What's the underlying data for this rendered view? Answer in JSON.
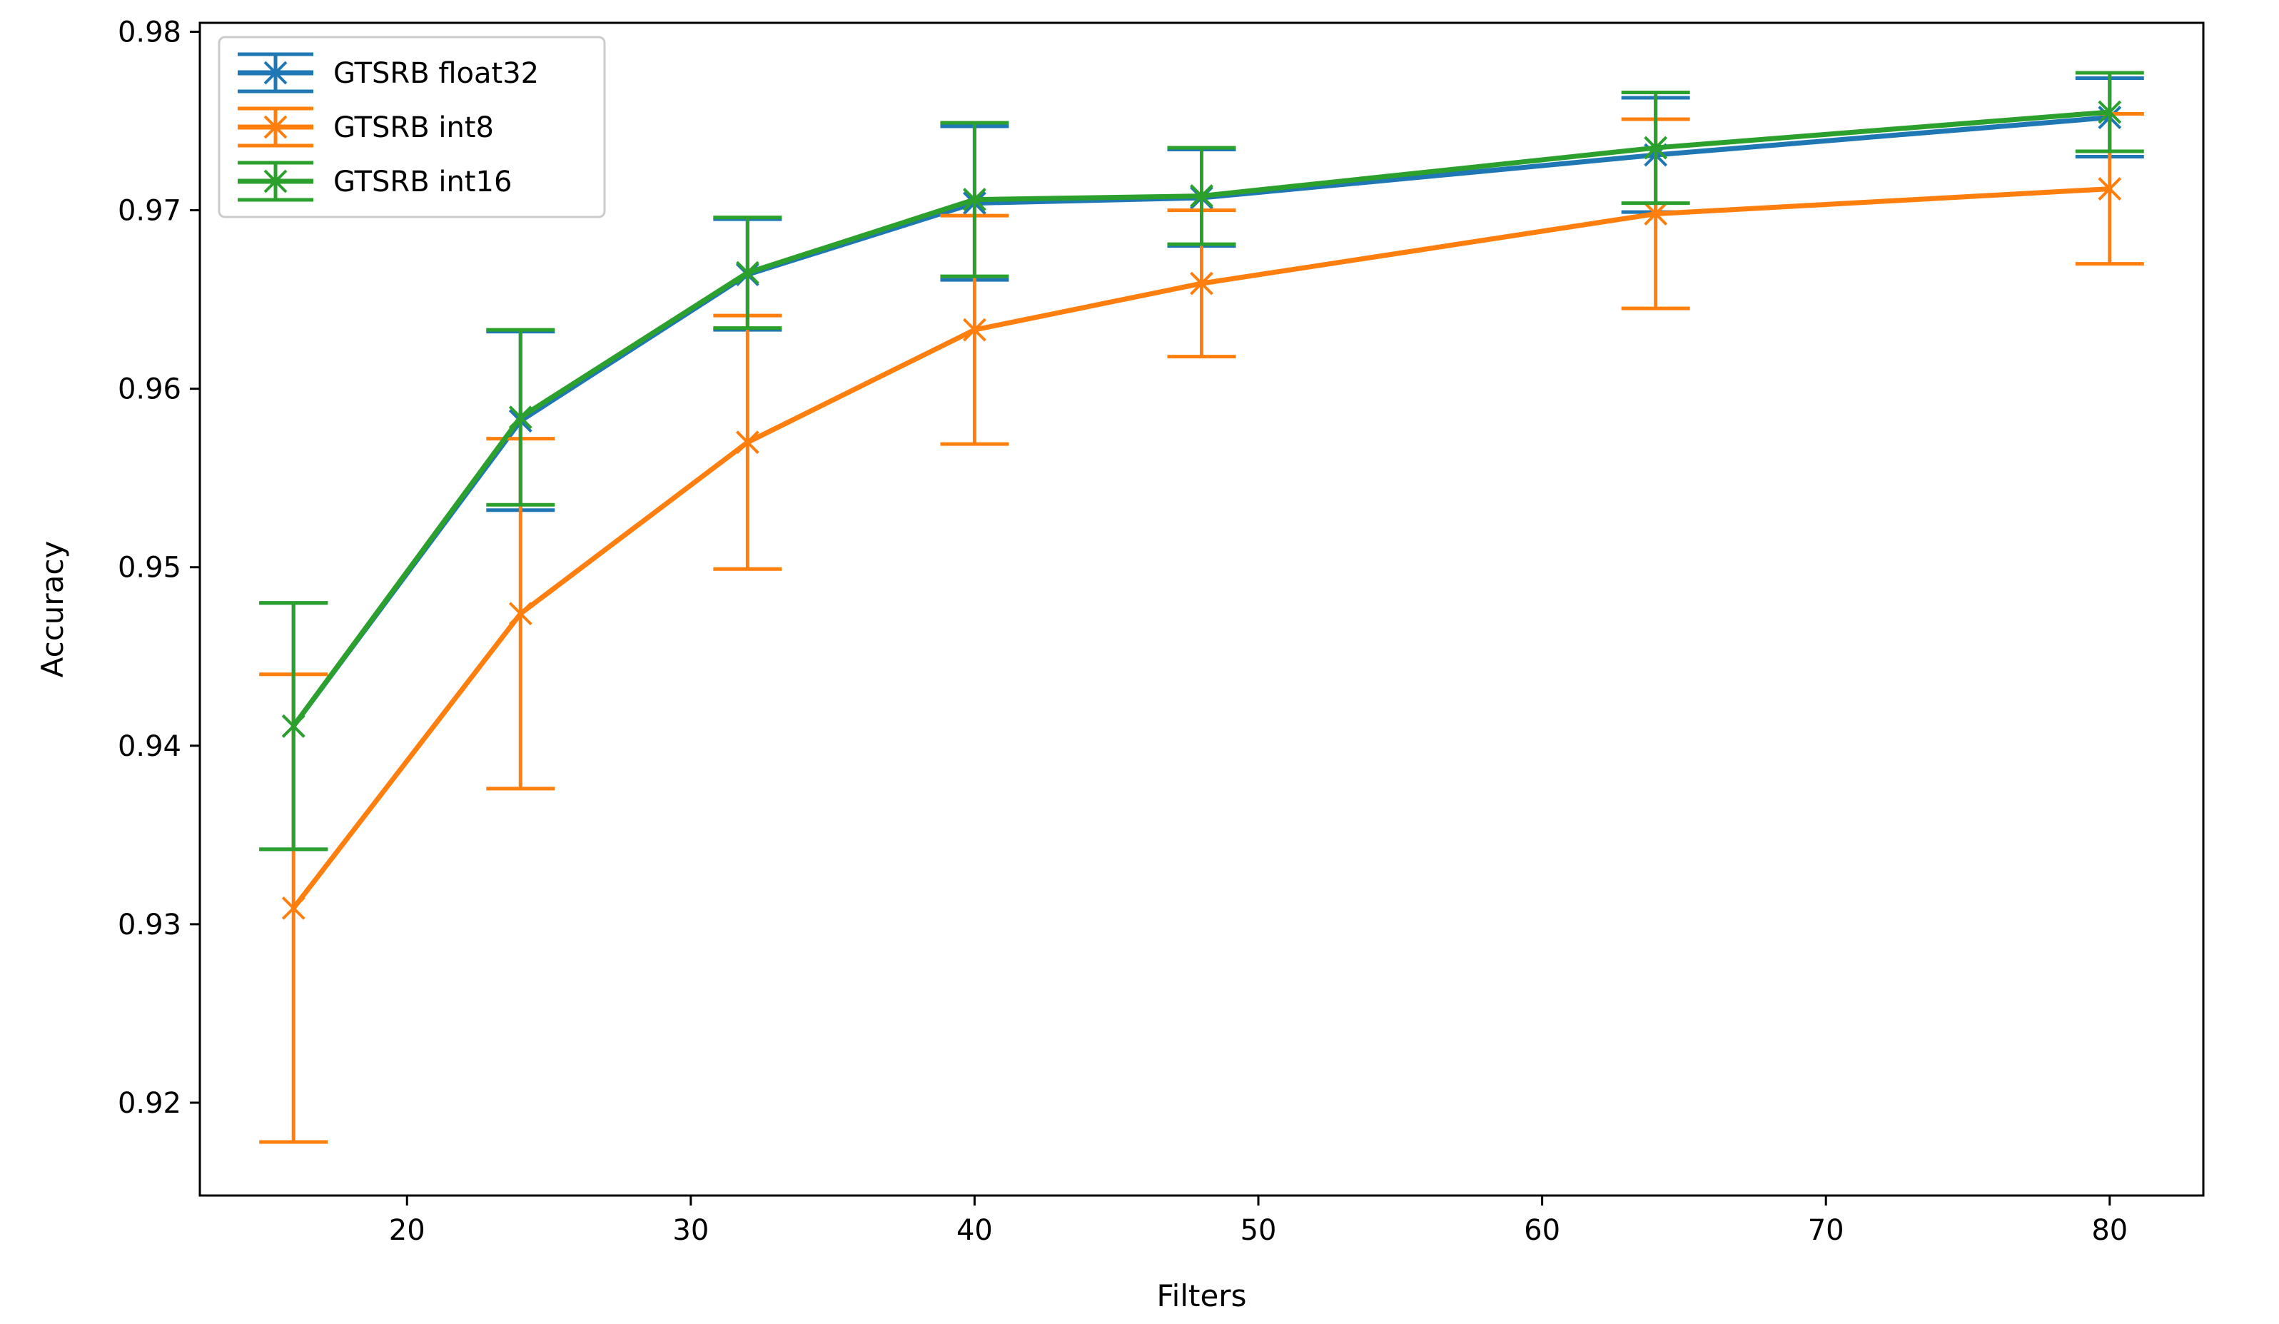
{
  "chart_data": {
    "type": "line",
    "title": "",
    "xlabel": "Filters",
    "ylabel": "Accuracy",
    "xlim": [
      12.7,
      83.3
    ],
    "ylim": [
      0.9148,
      0.9805
    ],
    "xticks": [
      20,
      30,
      40,
      50,
      60,
      70,
      80
    ],
    "yticks": [
      0.92,
      0.93,
      0.94,
      0.95,
      0.96,
      0.97,
      0.98
    ],
    "x": [
      16,
      24,
      32,
      40,
      48,
      64,
      80
    ],
    "legend_position": "top-left",
    "series": [
      {
        "name": "GTSRB float32",
        "color": "#1f77b4",
        "values": [
          0.9411,
          0.9582,
          0.9664,
          0.9704,
          0.9707,
          0.9731,
          0.9752
        ],
        "errors": [
          0.0069,
          0.005,
          0.0031,
          0.0043,
          0.0027,
          0.0032,
          0.0022
        ]
      },
      {
        "name": "GTSRB int8",
        "color": "#ff7f0e",
        "values": [
          0.9309,
          0.9474,
          0.957,
          0.9633,
          0.9659,
          0.9698,
          0.9712
        ],
        "errors": [
          0.0131,
          0.0098,
          0.0071,
          0.0064,
          0.0041,
          0.0053,
          0.0042
        ]
      },
      {
        "name": "GTSRB int16",
        "color": "#2ca02c",
        "values": [
          0.9411,
          0.9584,
          0.9665,
          0.9706,
          0.9708,
          0.9735,
          0.9755
        ],
        "errors": [
          0.0069,
          0.0049,
          0.0031,
          0.0043,
          0.0027,
          0.0031,
          0.0022
        ]
      }
    ]
  }
}
